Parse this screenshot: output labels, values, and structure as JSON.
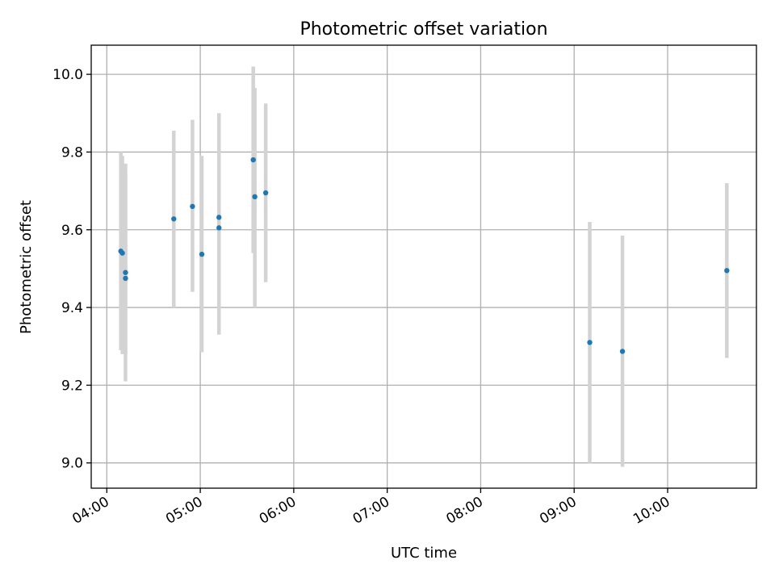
{
  "chart_data": {
    "type": "scatter",
    "title": "Photometric offset variation",
    "xlabel": "UTC time",
    "ylabel": "Photometric offset",
    "xlim": [
      "03:50",
      "10:57"
    ],
    "ylim": [
      8.935,
      10.075
    ],
    "x_ticks": [
      "04:00",
      "05:00",
      "06:00",
      "07:00",
      "08:00",
      "09:00",
      "10:00"
    ],
    "y_ticks": [
      "9.0",
      "9.2",
      "9.4",
      "9.6",
      "9.8",
      "10.0"
    ],
    "grid": true,
    "colors": {
      "points": "#1f77b4",
      "error_bars": "#d3d3d3",
      "grid": "#b0b0b0"
    },
    "points": [
      {
        "x": "04:09",
        "y": 9.545,
        "err_low": 9.29,
        "err_high": 9.8
      },
      {
        "x": "04:10",
        "y": 9.54,
        "err_low": 9.28,
        "err_high": 9.79
      },
      {
        "x": "04:12",
        "y": 9.49,
        "err_low": 9.21,
        "err_high": 9.77
      },
      {
        "x": "04:12",
        "y": 9.475,
        "err_low": 9.28,
        "err_high": 9.74
      },
      {
        "x": "04:43",
        "y": 9.628,
        "err_low": 9.4,
        "err_high": 9.855
      },
      {
        "x": "04:55",
        "y": 9.66,
        "err_low": 9.44,
        "err_high": 9.883
      },
      {
        "x": "05:01",
        "y": 9.537,
        "err_low": 9.285,
        "err_high": 9.79
      },
      {
        "x": "05:12",
        "y": 9.632,
        "err_low": 9.41,
        "err_high": 9.9
      },
      {
        "x": "05:12",
        "y": 9.605,
        "err_low": 9.33,
        "err_high": 9.88
      },
      {
        "x": "05:34",
        "y": 9.78,
        "err_low": 9.54,
        "err_high": 10.02
      },
      {
        "x": "05:35",
        "y": 9.685,
        "err_low": 9.4,
        "err_high": 9.965
      },
      {
        "x": "05:42",
        "y": 9.695,
        "err_low": 9.465,
        "err_high": 9.925
      },
      {
        "x": "09:10",
        "y": 9.31,
        "err_low": 9.0,
        "err_high": 9.62
      },
      {
        "x": "09:31",
        "y": 9.287,
        "err_low": 8.99,
        "err_high": 9.585
      },
      {
        "x": "10:38",
        "y": 9.495,
        "err_low": 9.27,
        "err_high": 9.72
      }
    ]
  }
}
